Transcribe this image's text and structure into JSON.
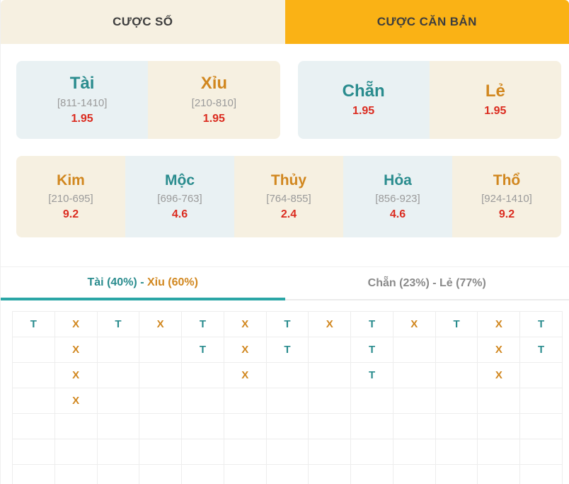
{
  "colors": {
    "teal": "#2a8c8e",
    "orange": "#d1871f",
    "red": "#db2b1f",
    "tab-active-bg": "#fab215",
    "cream": "#f6f0e1",
    "light-blue": "#e9f1f3"
  },
  "tabs": {
    "left": {
      "label": "CƯỢC SỐ"
    },
    "right": {
      "label": "CƯỢC CĂN BẢN"
    }
  },
  "bets": {
    "tai": {
      "name": "Tài",
      "range": "[811-1410]",
      "odds": "1.95"
    },
    "xiu": {
      "name": "Xỉu",
      "range": "[210-810]",
      "odds": "1.95"
    },
    "chan": {
      "name": "Chẵn",
      "odds": "1.95"
    },
    "le": {
      "name": "Lẻ",
      "odds": "1.95"
    },
    "elements": [
      {
        "name": "Kim",
        "range": "[210-695]",
        "odds": "9.2"
      },
      {
        "name": "Mộc",
        "range": "[696-763]",
        "odds": "4.6"
      },
      {
        "name": "Thủy",
        "range": "[764-855]",
        "odds": "2.4"
      },
      {
        "name": "Hỏa",
        "range": "[856-923]",
        "odds": "4.6"
      },
      {
        "name": "Thổ",
        "range": "[924-1410]",
        "odds": "9.2"
      }
    ]
  },
  "history_tabs": {
    "tai_xiu": {
      "part1": "Tài (40%) - ",
      "part2": "Xỉu (60%)"
    },
    "chan_le": {
      "label": "Chẵn (23%) - Lẻ (77%)"
    }
  },
  "grid": {
    "rows": [
      [
        "T",
        "X",
        "T",
        "X",
        "T",
        "X",
        "T",
        "X",
        "T",
        "X",
        "T",
        "X",
        "T"
      ],
      [
        "",
        "X",
        "",
        "",
        "T",
        "X",
        "T",
        "",
        "T",
        "",
        "",
        "X",
        "T"
      ],
      [
        "",
        "X",
        "",
        "",
        "",
        "X",
        "",
        "",
        "T",
        "",
        "",
        "X",
        ""
      ],
      [
        "",
        "X",
        "",
        "",
        "",
        "",
        "",
        "",
        "",
        "",
        "",
        "",
        ""
      ],
      [
        "",
        "",
        "",
        "",
        "",
        "",
        "",
        "",
        "",
        "",
        "",
        "",
        ""
      ],
      [
        "",
        "",
        "",
        "",
        "",
        "",
        "",
        "",
        "",
        "",
        "",
        "",
        ""
      ],
      [
        "",
        "",
        "",
        "",
        "",
        "",
        "",
        "",
        "",
        "",
        "",
        "",
        ""
      ]
    ]
  }
}
